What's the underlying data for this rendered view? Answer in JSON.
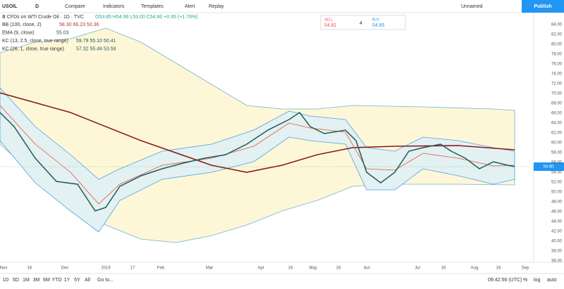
{
  "toolbar": {
    "symbol": "USOIL",
    "interval": "D",
    "items": [
      "Compare",
      "Indicators",
      "Templates",
      "Alert",
      "Replay"
    ],
    "layout": "Unnamed",
    "publish": "Publish"
  },
  "legend": {
    "title": "Ⅲ CFDs on WTI Crude Oil · 1D · TVC",
    "ohlc": "O53.85 H54.99 L53.00 C54.80 +0.95 (+1.76%)",
    "indicators": [
      {
        "name": "BB (100, close, 2)",
        "values": "58.30  66.23  50.36"
      },
      {
        "name": "EMA (9, close)",
        "values": "55.03"
      },
      {
        "name": "KC (13, 2.5, close, true range)",
        "values": "59.79  55.10  50.41"
      },
      {
        "name": "KC (26, 1, close, true range)",
        "values": "57.32  55.46  53.59"
      }
    ]
  },
  "trade": {
    "sell_label": "SELL",
    "sell": "54.81",
    "spread": "4",
    "buy_label": "BUY",
    "buy": "54.85"
  },
  "price_axis": [
    "84.00",
    "82.00",
    "80.00",
    "78.00",
    "76.00",
    "74.00",
    "72.00",
    "70.00",
    "68.00",
    "66.00",
    "64.00",
    "62.00",
    "60.00",
    "58.00",
    "56.00",
    "54.00",
    "52.00",
    "50.00",
    "48.00",
    "46.00",
    "44.00",
    "42.00",
    "40.00",
    "38.00",
    "36.00"
  ],
  "last_price": "54.80",
  "time_axis": [
    "Nov",
    "16",
    "Dec",
    "2019",
    "17",
    "Feb",
    "Mar",
    "Apr",
    "16",
    "May",
    "16",
    "Jun",
    "Jul",
    "16",
    "Aug",
    "16",
    "Sep"
  ],
  "bottom": {
    "ranges": [
      "1D",
      "5D",
      "1M",
      "3M",
      "6M",
      "YTD",
      "1Y",
      "5Y",
      "All"
    ],
    "goto": "Go to...",
    "clock": "09:42:56 (UTC)",
    "pct": "%",
    "log": "log",
    "auto": "auto"
  }
}
